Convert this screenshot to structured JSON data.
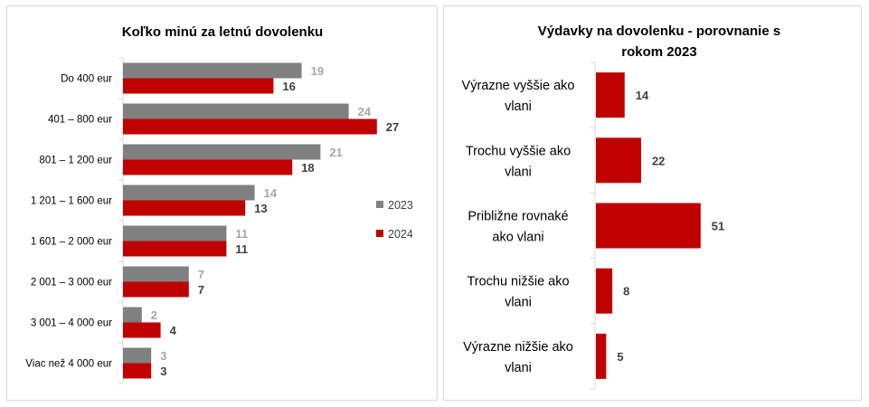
{
  "colors": {
    "series_2023": "#808080",
    "series_2024": "#c00000",
    "axis": "#d9d9d9",
    "label_2023": "#a6a6a6",
    "label_2024": "#404040"
  },
  "chart_data": [
    {
      "type": "bar",
      "orientation": "horizontal",
      "title": "Koľko minú za letnú dovolenku",
      "categories": [
        "Do 400 eur",
        "401 – 800 eur",
        "801 – 1 200 eur",
        "1 201 – 1 600 eur",
        "1 601 – 2 000 eur",
        "2 001 – 3 000 eur",
        "3 001 – 4 000 eur",
        "Viac než 4 000 eur"
      ],
      "series": [
        {
          "name": "2023",
          "values": [
            19,
            24,
            21,
            14,
            11,
            7,
            2,
            3
          ]
        },
        {
          "name": "2024",
          "values": [
            16,
            27,
            18,
            13,
            11,
            7,
            4,
            3
          ]
        }
      ],
      "xlim": [
        0,
        30
      ],
      "legend": "right",
      "grid": false
    },
    {
      "type": "bar",
      "orientation": "horizontal",
      "title": "Výdavky na dovolenku - porovnanie s rokom 2023",
      "title_lines": [
        "Výdavky na dovolenku - porovnanie s",
        "rokom 2023"
      ],
      "categories": [
        "Výrazne vyššie ako vlani",
        "Trochu vyššie ako vlani",
        "Približne rovnaké ako vlani",
        "Trochu nižšie ako vlani",
        "Výrazne nižšie ako vlani"
      ],
      "category_lines": [
        [
          "Výrazne vyššie ako",
          "vlani"
        ],
        [
          "Trochu vyššie ako",
          "vlani"
        ],
        [
          "Približne rovnaké",
          "ako vlani"
        ],
        [
          "Trochu nižšie ako",
          "vlani"
        ],
        [
          "Výrazne nižšie ako",
          "vlani"
        ]
      ],
      "values": [
        14,
        22,
        51,
        8,
        5
      ],
      "xlim": [
        0,
        60
      ],
      "grid": false
    }
  ]
}
